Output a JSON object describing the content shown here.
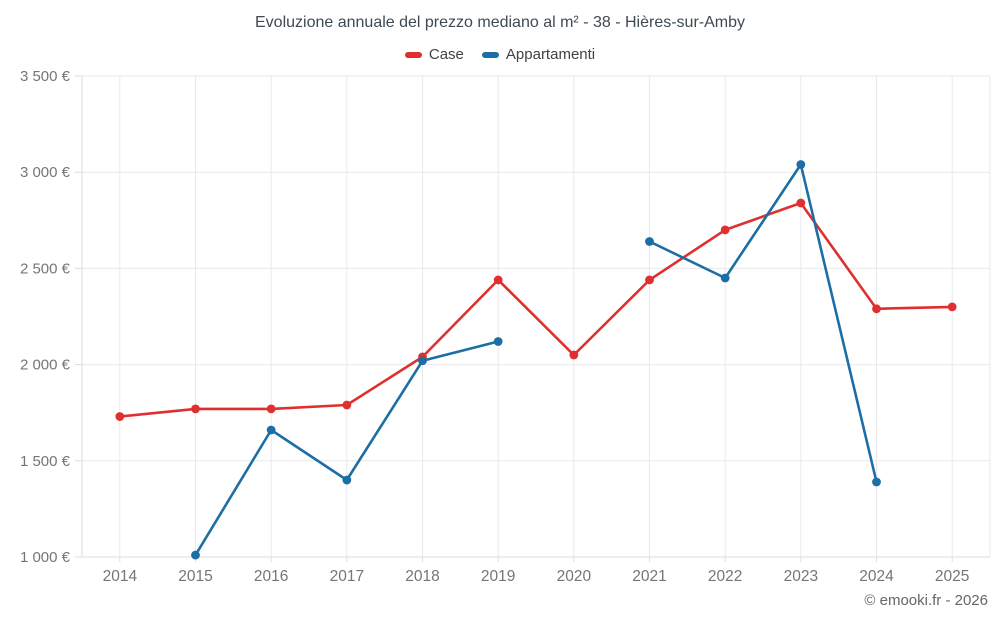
{
  "chart": {
    "title": "Evoluzione annuale del prezzo mediano al m² - 38 - Hières-sur-Amby",
    "footer": "© emooki.fr - 2026"
  },
  "chart_data": {
    "type": "line",
    "title": "Evoluzione annuale del prezzo mediano al m² - 38 - Hières-sur-Amby",
    "categories": [
      "2014",
      "2015",
      "2016",
      "2017",
      "2018",
      "2019",
      "2020",
      "2021",
      "2022",
      "2023",
      "2024",
      "2025"
    ],
    "series": [
      {
        "name": "Case",
        "color": "#e02f2f",
        "values": [
          1730,
          1770,
          1770,
          1790,
          2040,
          2440,
          2050,
          2440,
          2700,
          2840,
          2290,
          2300
        ]
      },
      {
        "name": "Appartamenti",
        "color": "#1c6ea4",
        "values": [
          null,
          1010,
          1660,
          1400,
          2020,
          2120,
          null,
          2640,
          2450,
          3040,
          1390,
          null
        ]
      }
    ],
    "xlabel": "",
    "ylabel": "",
    "ylim": [
      1000,
      3500
    ],
    "ytick_step": 500,
    "ytick_labels": [
      "1 000 €",
      "1 500 €",
      "2 000 €",
      "2 500 €",
      "3 000 €",
      "3 500 €"
    ],
    "grid": true,
    "legend_position": "top-center",
    "colors": {
      "grid_line": "#e9e9e9",
      "axis_line": "#dddddd",
      "tick_label": "#757575"
    }
  }
}
